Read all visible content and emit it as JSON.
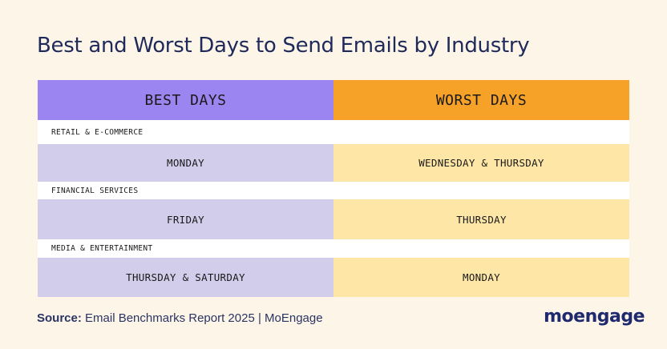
{
  "title": "Best and Worst Days to Send Emails by Industry",
  "headers": {
    "best": "BEST DAYS",
    "worst": "WORST DAYS"
  },
  "rows": [
    {
      "industry": "RETAIL & E-COMMERCE",
      "best": "MONDAY",
      "worst": "WEDNESDAY & THURSDAY"
    },
    {
      "industry": "FINANCIAL SERVICES",
      "best": "FRIDAY",
      "worst": "THURSDAY"
    },
    {
      "industry": "MEDIA & ENTERTAINMENT",
      "best": "THURSDAY & SATURDAY",
      "worst": "MONDAY"
    }
  ],
  "footer": {
    "source_label": "Source:",
    "source_text": " Email Benchmarks Report 2025 | MoEngage",
    "logo": "moengage"
  },
  "colors": {
    "background": "#fdf6e8",
    "best_header": "#9b85f0",
    "worst_header": "#f6a127",
    "best_cell": "#d1cdea",
    "worst_cell": "#fde6a6",
    "title": "#1f2a5a"
  }
}
